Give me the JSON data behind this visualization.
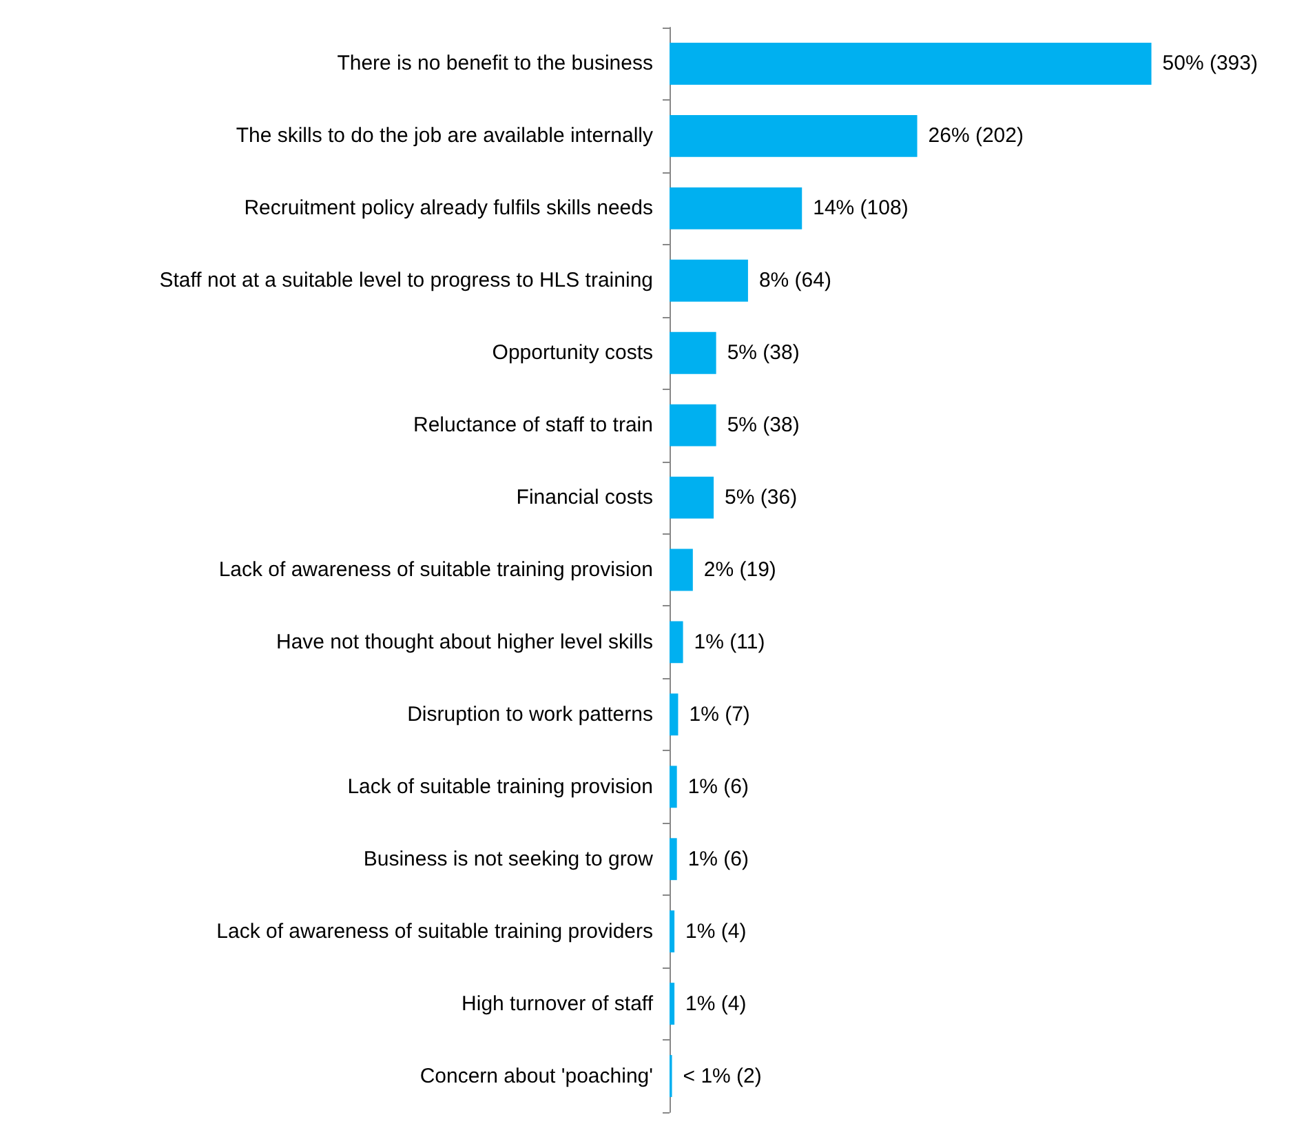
{
  "chart_data": {
    "type": "bar",
    "orientation": "horizontal",
    "categories": [
      "There is no benefit to the business",
      "The skills to do the job are available internally",
      "Recruitment policy already fulfils skills needs",
      "Staff not at a suitable level to progress to HLS training",
      "Opportunity costs",
      "Reluctance of staff to train",
      "Financial costs",
      "Lack of awareness of suitable training provision",
      "Have not thought about higher level skills",
      "Disruption to work patterns",
      "Lack of suitable training provision",
      "Business is not seeking to grow",
      "Lack of awareness of suitable training providers",
      "High turnover of staff",
      "Concern about 'poaching'"
    ],
    "values": [
      393,
      202,
      108,
      64,
      38,
      38,
      36,
      19,
      11,
      7,
      6,
      6,
      4,
      4,
      2
    ],
    "value_labels": [
      "50% (393)",
      "26% (202)",
      "14% (108)",
      "8% (64)",
      "5% (38)",
      "5% (38)",
      "5% (36)",
      "2% (19)",
      "1% (11)",
      "1% (7)",
      "1% (6)",
      "1% (6)",
      "1% (4)",
      "1% (4)",
      "< 1% (2)"
    ],
    "color": "#00b0f0"
  }
}
